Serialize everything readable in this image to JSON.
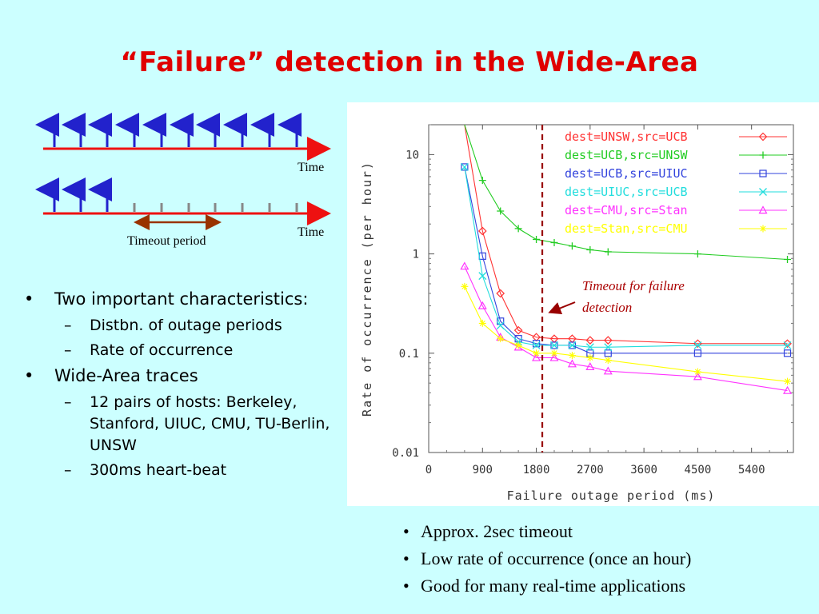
{
  "title": "“Failure” detection in the Wide-Area",
  "heartbeat": {
    "time_label_1": "Time",
    "time_label_2": "Time",
    "timeout_label": "Timeout period",
    "arrow_color": "#2222cc",
    "axis_color": "#ee1111",
    "timeout_arrow_color": "#993300"
  },
  "bullets": [
    {
      "text": "Two important characteristics:",
      "subs": [
        "Distbn. of outage periods",
        "Rate of occurrence"
      ]
    },
    {
      "text": "Wide-Area traces",
      "subs": [
        "12 pairs of hosts: Berkeley, Stanford, UIUC, CMU, TU-Berlin, UNSW",
        "300ms heart-beat"
      ]
    }
  ],
  "notes": [
    "Approx. 2sec timeout",
    "Low rate of occurrence (once an hour)",
    "Good for many real-time applications"
  ],
  "chart_data": {
    "type": "line",
    "xlabel": "Failure outage period (ms)",
    "ylabel": "Rate of occurrence (per hour)",
    "xlim": [
      0,
      6100
    ],
    "ylim": [
      0.01,
      20
    ],
    "yscale": "log",
    "xticks": [
      0,
      900,
      1800,
      2700,
      3600,
      4500,
      5400
    ],
    "yticks": [
      {
        "value": 0.01,
        "label": "0.01"
      },
      {
        "value": 0.1,
        "label": "0.1"
      },
      {
        "value": 1,
        "label": "1"
      },
      {
        "value": 10,
        "label": "10"
      }
    ],
    "legend_position": "top-right",
    "annotation": {
      "text": [
        "Timeout for failure",
        "detection"
      ],
      "x": 1900
    },
    "series": [
      {
        "name": "dest=UNSW,src=UCB",
        "color": "#ff3333",
        "marker": "diamond",
        "x": [
          600,
          900,
          1200,
          1500,
          1800,
          2100,
          2400,
          2700,
          3000,
          4500,
          6000
        ],
        "y": [
          20,
          1.7,
          0.4,
          0.17,
          0.145,
          0.14,
          0.14,
          0.135,
          0.135,
          0.125,
          0.125
        ]
      },
      {
        "name": "dest=UCB,src=UNSW",
        "color": "#22cc22",
        "marker": "plus",
        "x": [
          600,
          900,
          1200,
          1500,
          1800,
          2100,
          2400,
          2700,
          3000,
          4500,
          6000
        ],
        "y": [
          20,
          5.5,
          2.7,
          1.8,
          1.4,
          1.3,
          1.2,
          1.1,
          1.05,
          1.0,
          0.88
        ]
      },
      {
        "name": "dest=UCB,src=UIUC",
        "color": "#3344dd",
        "marker": "square",
        "x": [
          600,
          900,
          1200,
          1500,
          1800,
          2100,
          2400,
          2700,
          3000,
          4500,
          6000
        ],
        "y": [
          7.5,
          0.95,
          0.21,
          0.14,
          0.125,
          0.12,
          0.12,
          0.1,
          0.1,
          0.1,
          0.1
        ]
      },
      {
        "name": "dest=UIUC,src=UCB",
        "color": "#22dddd",
        "marker": "cross",
        "x": [
          600,
          900,
          1200,
          1500,
          1800,
          2100,
          2400,
          2700,
          3000,
          4500,
          6000
        ],
        "y": [
          7.5,
          0.6,
          0.19,
          0.13,
          0.12,
          0.12,
          0.12,
          0.115,
          0.115,
          0.12,
          0.12
        ]
      },
      {
        "name": "dest=CMU,src=Stan",
        "color": "#ff33ff",
        "marker": "triangle",
        "x": [
          600,
          900,
          1200,
          1500,
          1800,
          2100,
          2400,
          2700,
          3000,
          4500,
          6000
        ],
        "y": [
          0.75,
          0.3,
          0.145,
          0.115,
          0.09,
          0.09,
          0.078,
          0.073,
          0.066,
          0.058,
          0.042
        ]
      },
      {
        "name": "dest=Stan,src=CMU",
        "color": "#ffff00",
        "marker": "star",
        "x": [
          600,
          900,
          1200,
          1500,
          1800,
          2100,
          2400,
          2700,
          3000,
          4500,
          6000
        ],
        "y": [
          0.47,
          0.2,
          0.14,
          0.12,
          0.1,
          0.1,
          0.095,
          0.09,
          0.085,
          0.065,
          0.052
        ]
      }
    ]
  }
}
